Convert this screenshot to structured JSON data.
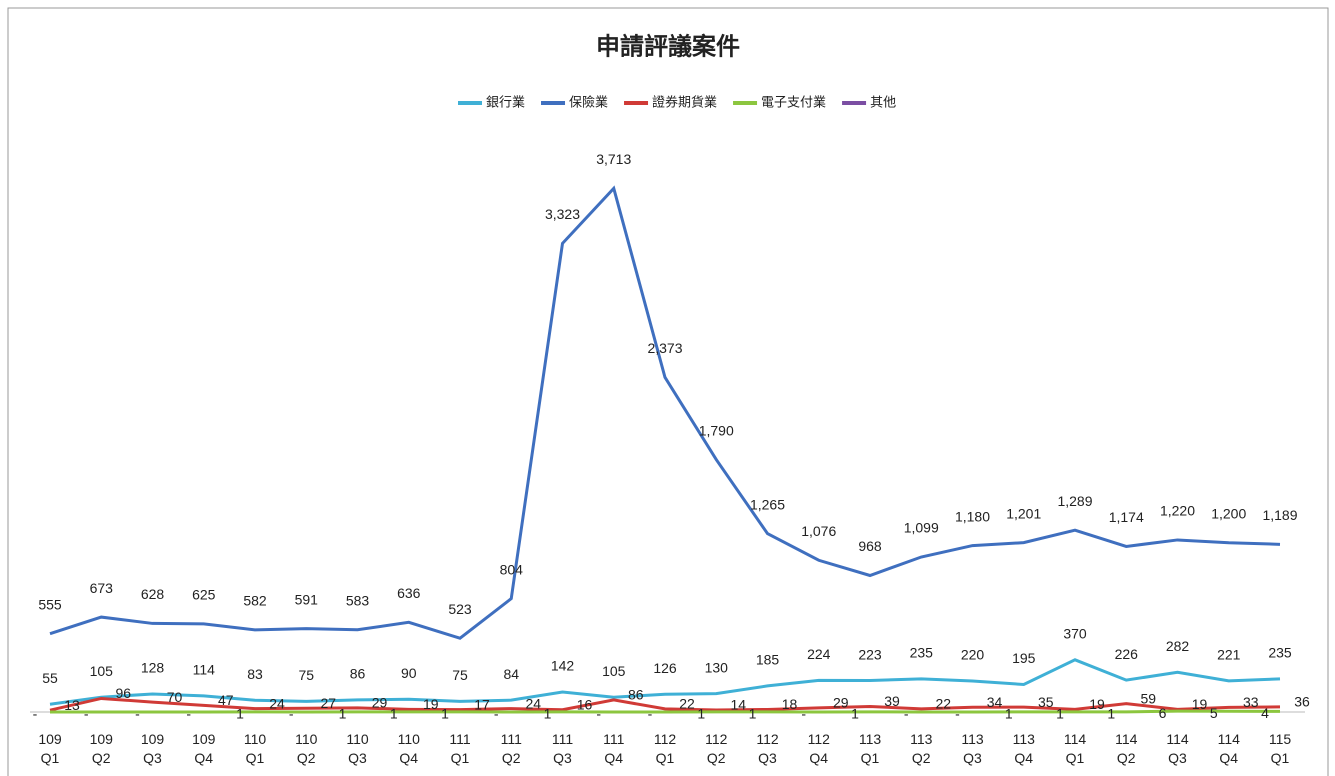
{
  "chart_data": {
    "type": "line",
    "title": "申請評議案件",
    "categories": [
      "109\nQ1",
      "109\nQ2",
      "109\nQ3",
      "109\nQ4",
      "110\nQ1",
      "110\nQ2",
      "110\nQ3",
      "110\nQ4",
      "111\nQ1",
      "111\nQ2",
      "111\nQ3",
      "111\nQ4",
      "112\nQ1",
      "112\nQ2",
      "112\nQ3",
      "112\nQ4",
      "113\nQ1",
      "113\nQ2",
      "113\nQ3",
      "113\nQ4",
      "114\nQ1",
      "114\nQ2",
      "114\nQ3",
      "114\nQ4",
      "115\nQ1"
    ],
    "series": [
      {
        "name": "銀行業",
        "color": "#3fb0d6",
        "values": [
          55,
          105,
          128,
          114,
          83,
          75,
          86,
          90,
          75,
          84,
          142,
          105,
          126,
          130,
          185,
          224,
          223,
          235,
          220,
          195,
          370,
          226,
          282,
          221,
          235
        ]
      },
      {
        "name": "保險業",
        "color": "#3f6fbf",
        "values": [
          555,
          673,
          628,
          625,
          582,
          591,
          583,
          636,
          523,
          804,
          3323,
          3713,
          2373,
          1790,
          1265,
          1076,
          968,
          1099,
          1180,
          1201,
          1289,
          1174,
          1220,
          1200,
          1189
        ],
        "value_labels": [
          "555",
          "673",
          "628",
          "625",
          "582",
          "591",
          "583",
          "636",
          "523",
          "804",
          "3,323",
          "3,713",
          "2,373",
          "1,790",
          "1,265",
          "1,076",
          "968",
          "1,099",
          "1,180",
          "1,201",
          "1,289",
          "1,174",
          "1,220",
          "1,200",
          "1,189"
        ]
      },
      {
        "name": "證券期貨業",
        "color": "#d03a36",
        "values": [
          13,
          96,
          70,
          47,
          24,
          27,
          29,
          19,
          17,
          24,
          16,
          86,
          22,
          14,
          18,
          29,
          39,
          22,
          34,
          35,
          19,
          59,
          19,
          33,
          36
        ]
      },
      {
        "name": "電子支付業",
        "color": "#8cc63f",
        "values": [
          0,
          0,
          0,
          0,
          1,
          0,
          1,
          1,
          1,
          0,
          1,
          0,
          0,
          1,
          1,
          0,
          1,
          0,
          0,
          1,
          1,
          1,
          6,
          5,
          4
        ],
        "value_labels": [
          "-",
          "-",
          "-",
          "-",
          "1",
          "-",
          "1",
          "1",
          "1",
          "-",
          "1",
          "-",
          "-",
          "1",
          "1",
          "-",
          "1",
          "-",
          "-",
          "1",
          "1",
          "1",
          "6",
          "5",
          "4"
        ]
      },
      {
        "name": "其他",
        "color": "#7b4ea3",
        "values": [
          null,
          null,
          null,
          null,
          null,
          null,
          null,
          null,
          null,
          null,
          null,
          null,
          null,
          null,
          null,
          null,
          null,
          null,
          null,
          null,
          null,
          null,
          null,
          null,
          null
        ]
      }
    ],
    "ylim": [
      0,
      3900
    ]
  }
}
